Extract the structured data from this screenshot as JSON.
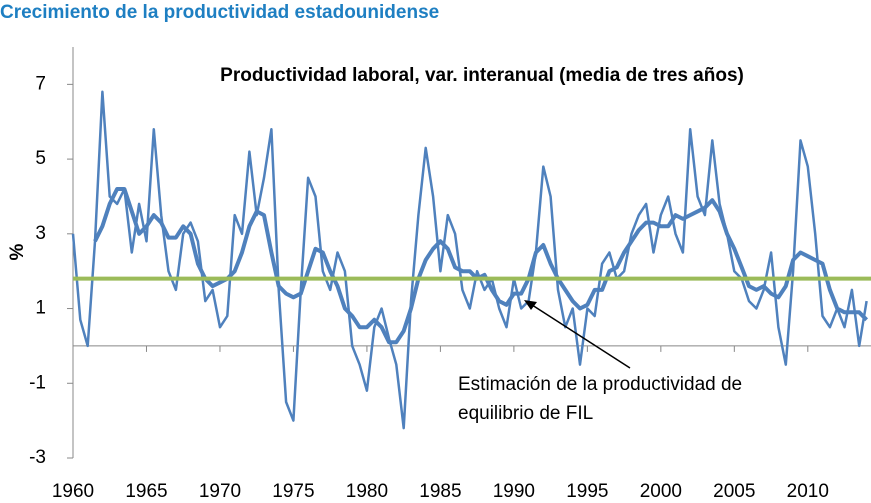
{
  "chart_data": {
    "type": "line",
    "title": "Crecimiento de la productividad estadounidense",
    "subtitle": "Productividad laboral, var. interanual (media de tres años)",
    "y_label": "%",
    "annotation": [
      "Estimación de la productividad de",
      "equilibrio de FIL"
    ],
    "xlim": [
      1960,
      2014.3
    ],
    "ylim": [
      -3,
      8
    ],
    "xticks": [
      1960,
      1965,
      1970,
      1975,
      1980,
      1985,
      1990,
      1995,
      2000,
      2005,
      2010
    ],
    "yticks": [
      -3,
      -1,
      1,
      3,
      5,
      7
    ],
    "reference_line": {
      "value": 1.8,
      "color": "#9bbb59"
    },
    "x": [
      1960,
      1960.5,
      1961,
      1961.5,
      1962,
      1962.5,
      1963,
      1963.5,
      1964,
      1964.5,
      1965,
      1965.5,
      1966,
      1966.5,
      1967,
      1967.5,
      1968,
      1968.5,
      1969,
      1969.5,
      1970,
      1970.5,
      1971,
      1971.5,
      1972,
      1972.5,
      1973,
      1973.5,
      1974,
      1974.5,
      1975,
      1975.5,
      1976,
      1976.5,
      1977,
      1977.5,
      1978,
      1978.5,
      1979,
      1979.5,
      1980,
      1980.5,
      1981,
      1981.5,
      1982,
      1982.5,
      1983,
      1983.5,
      1984,
      1984.5,
      1985,
      1985.5,
      1986,
      1986.5,
      1987,
      1987.5,
      1988,
      1988.5,
      1989,
      1989.5,
      1990,
      1990.5,
      1991,
      1991.5,
      1992,
      1992.5,
      1993,
      1993.5,
      1994,
      1994.5,
      1995,
      1995.5,
      1996,
      1996.5,
      1997,
      1997.5,
      1998,
      1998.5,
      1999,
      1999.5,
      2000,
      2000.5,
      2001,
      2001.5,
      2002,
      2002.5,
      2003,
      2003.5,
      2004,
      2004.5,
      2005,
      2005.5,
      2006,
      2006.5,
      2007,
      2007.5,
      2008,
      2008.5,
      2009,
      2009.5,
      2010,
      2010.5,
      2011,
      2011.5,
      2012,
      2012.5,
      2013,
      2013.5,
      2014
    ],
    "series": [
      {
        "color": "#4f81bd",
        "width": 2.5,
        "values": [
          3.0,
          0.7,
          0.0,
          2.8,
          6.8,
          4.0,
          3.8,
          4.2,
          2.5,
          3.8,
          2.8,
          5.8,
          3.5,
          2.0,
          1.5,
          3.0,
          3.3,
          2.8,
          1.2,
          1.5,
          0.5,
          0.8,
          3.5,
          3.0,
          5.2,
          3.5,
          4.5,
          5.8,
          1.5,
          -1.5,
          -2.0,
          1.5,
          4.5,
          4.0,
          2.0,
          1.5,
          2.5,
          2.0,
          0.0,
          -0.5,
          -1.2,
          0.5,
          1.0,
          0.2,
          -0.5,
          -2.2,
          1.2,
          3.5,
          5.3,
          4.0,
          2.0,
          3.5,
          3.0,
          1.5,
          1.0,
          2.0,
          1.5,
          1.8,
          1.0,
          0.5,
          1.8,
          1.0,
          1.2,
          2.5,
          4.8,
          4.0,
          1.5,
          0.5,
          1.0,
          -0.5,
          1.0,
          0.8,
          2.2,
          2.5,
          1.8,
          2.0,
          3.0,
          3.5,
          3.8,
          2.5,
          3.5,
          4.0,
          3.0,
          2.5,
          5.8,
          4.0,
          3.5,
          5.5,
          3.8,
          3.0,
          2.0,
          1.8,
          1.2,
          1.0,
          1.5,
          2.5,
          0.5,
          -0.5,
          2.0,
          5.5,
          4.8,
          3.0,
          0.8,
          0.5,
          1.0,
          0.5,
          1.5,
          0.0,
          1.2
        ]
      },
      {
        "color": "#4f81bd",
        "width": 4,
        "values": [
          null,
          null,
          null,
          2.8,
          3.2,
          3.8,
          4.2,
          4.2,
          3.6,
          3.0,
          3.2,
          3.5,
          3.3,
          2.9,
          2.9,
          3.2,
          3.0,
          2.2,
          1.8,
          1.6,
          1.7,
          1.8,
          2.0,
          2.5,
          3.2,
          3.6,
          3.5,
          2.5,
          1.6,
          1.4,
          1.3,
          1.4,
          2.0,
          2.6,
          2.5,
          2.0,
          1.6,
          1.0,
          0.8,
          0.5,
          0.5,
          0.7,
          0.5,
          0.1,
          0.1,
          0.4,
          1.0,
          1.8,
          2.3,
          2.6,
          2.8,
          2.6,
          2.1,
          2.0,
          2.0,
          1.8,
          1.9,
          1.5,
          1.2,
          1.1,
          1.4,
          1.4,
          1.8,
          2.5,
          2.7,
          2.2,
          1.8,
          1.5,
          1.2,
          1.0,
          1.1,
          1.5,
          1.5,
          2.0,
          2.1,
          2.5,
          2.8,
          3.1,
          3.3,
          3.3,
          3.2,
          3.2,
          3.5,
          3.4,
          3.5,
          3.6,
          3.7,
          3.9,
          3.6,
          3.0,
          2.6,
          2.1,
          1.6,
          1.5,
          1.6,
          1.4,
          1.3,
          1.6,
          2.3,
          2.5,
          2.4,
          2.3,
          2.2,
          1.5,
          1.0,
          0.9,
          0.9,
          0.9,
          0.7
        ]
      }
    ]
  }
}
